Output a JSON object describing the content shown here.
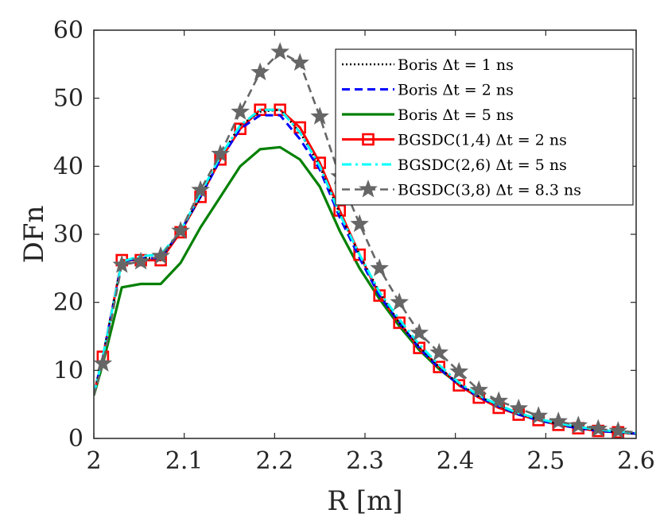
{
  "chart_data": {
    "type": "line",
    "xlabel": "R [m]",
    "ylabel": "DFn",
    "xlim": [
      2.0,
      2.6
    ],
    "ylim": [
      0,
      60
    ],
    "xticks": [
      2,
      2.1,
      2.2,
      2.3,
      2.4,
      2.5,
      2.6
    ],
    "yticks": [
      0,
      10,
      20,
      30,
      40,
      50,
      60
    ],
    "xtick_labels": [
      "2",
      "2.1",
      "2.2",
      "2.3",
      "2.4",
      "2.5",
      "2.6"
    ],
    "ytick_labels": [
      "0",
      "10",
      "20",
      "30",
      "40",
      "50",
      "60"
    ],
    "grid": false,
    "legend_position": "top-right",
    "series": [
      {
        "name": "Boris Δt = 1 ns",
        "color": "#000000",
        "line_style": "dotted",
        "marker": "none",
        "x": [
          2.0,
          2.01,
          2.031,
          2.052,
          2.074,
          2.096,
          2.118,
          2.14,
          2.162,
          2.184,
          2.206,
          2.228,
          2.25,
          2.272,
          2.294,
          2.316,
          2.338,
          2.36,
          2.382,
          2.404,
          2.426,
          2.448,
          2.47,
          2.492,
          2.514,
          2.536,
          2.558,
          2.58,
          2.6
        ],
        "y": [
          6.5,
          12,
          26,
          26.5,
          26.5,
          30.5,
          35.5,
          41.5,
          46,
          48,
          48.3,
          45,
          40,
          33,
          27,
          21.5,
          17,
          13.5,
          10.5,
          8,
          6.2,
          4.8,
          3.6,
          2.8,
          2.1,
          1.6,
          1.2,
          0.9,
          0.7
        ]
      },
      {
        "name": "Boris Δt = 2 ns",
        "color": "#0000ff",
        "line_style": "dashed",
        "marker": "none",
        "x": [
          2.0,
          2.01,
          2.031,
          2.052,
          2.074,
          2.096,
          2.118,
          2.14,
          2.162,
          2.184,
          2.206,
          2.228,
          2.25,
          2.272,
          2.294,
          2.316,
          2.338,
          2.36,
          2.382,
          2.404,
          2.426,
          2.448,
          2.47,
          2.492,
          2.514,
          2.536,
          2.558,
          2.58,
          2.6
        ],
        "y": [
          6.5,
          12,
          26,
          26.5,
          26.5,
          30.5,
          35.5,
          41,
          45.5,
          47.5,
          47.5,
          44,
          39.5,
          32.5,
          26.5,
          21,
          17,
          13.3,
          10.3,
          7.9,
          6.1,
          4.7,
          3.5,
          2.7,
          2.0,
          1.5,
          1.1,
          0.9,
          0.7
        ]
      },
      {
        "name": "Boris Δt = 5 ns",
        "color": "#008000",
        "line_style": "solid",
        "marker": "none",
        "x": [
          2.0,
          2.01,
          2.031,
          2.052,
          2.074,
          2.096,
          2.118,
          2.14,
          2.162,
          2.184,
          2.206,
          2.228,
          2.25,
          2.272,
          2.294,
          2.316,
          2.338,
          2.36,
          2.382,
          2.404,
          2.426,
          2.448,
          2.47,
          2.492,
          2.514,
          2.536,
          2.558,
          2.58,
          2.6
        ],
        "y": [
          6.3,
          11,
          22.2,
          22.7,
          22.7,
          25.8,
          31,
          35.5,
          40,
          42.5,
          42.8,
          41,
          37,
          30.5,
          25,
          20.5,
          16.5,
          13,
          10.2,
          7.9,
          6.1,
          4.7,
          3.6,
          2.8,
          2.1,
          1.6,
          1.2,
          0.9,
          0.7
        ]
      },
      {
        "name": "BGSDC(1,4) Δt = 2 ns",
        "color": "#ff0000",
        "line_style": "solid",
        "marker": "square",
        "x": [
          2.0,
          2.01,
          2.031,
          2.052,
          2.074,
          2.096,
          2.118,
          2.14,
          2.162,
          2.184,
          2.206,
          2.228,
          2.25,
          2.272,
          2.294,
          2.316,
          2.338,
          2.36,
          2.382,
          2.404,
          2.426,
          2.448,
          2.47,
          2.492,
          2.514,
          2.536,
          2.558,
          2.58,
          2.6
        ],
        "y": [
          6.5,
          12,
          26.2,
          26.2,
          26.2,
          30.3,
          35.5,
          41,
          45.5,
          48.3,
          48.3,
          45.7,
          40.5,
          33.5,
          27,
          21,
          17,
          13.3,
          10.5,
          7.8,
          6,
          4.5,
          3.5,
          2.7,
          2.0,
          1.5,
          1.1,
          0.9,
          0.7
        ]
      },
      {
        "name": "BGSDC(2,6) Δt = 5 ns",
        "color": "#00ffff",
        "line_style": "dashdot",
        "marker": "none",
        "x": [
          2.0,
          2.01,
          2.031,
          2.052,
          2.074,
          2.096,
          2.118,
          2.14,
          2.162,
          2.184,
          2.206,
          2.228,
          2.25,
          2.272,
          2.294,
          2.316,
          2.338,
          2.36,
          2.382,
          2.404,
          2.426,
          2.448,
          2.47,
          2.492,
          2.514,
          2.536,
          2.558,
          2.58,
          2.6
        ],
        "y": [
          6.5,
          12,
          26,
          26.8,
          27,
          30.5,
          36,
          41.5,
          46,
          48.3,
          48.3,
          45,
          40,
          33,
          27,
          21.5,
          17.5,
          13.8,
          10.8,
          8.2,
          6.3,
          4.9,
          3.7,
          2.9,
          2.2,
          1.7,
          1.3,
          1.0,
          0.8
        ]
      },
      {
        "name": "BGSDC(3,8) Δt = 8.3 ns",
        "color": "#666666",
        "line_style": "dashed",
        "marker": "star",
        "x": [
          2.0,
          2.01,
          2.031,
          2.052,
          2.074,
          2.096,
          2.118,
          2.14,
          2.162,
          2.184,
          2.206,
          2.228,
          2.25,
          2.272,
          2.294,
          2.316,
          2.338,
          2.36,
          2.382,
          2.404,
          2.426,
          2.448,
          2.47,
          2.492,
          2.514,
          2.536,
          2.558,
          2.58,
          2.6
        ],
        "y": [
          6.3,
          11,
          25.5,
          26,
          26.8,
          30.5,
          36.5,
          41.8,
          48,
          53.8,
          56.8,
          55.2,
          47.3,
          38.5,
          31.5,
          25,
          20,
          15.5,
          12.6,
          9.8,
          7.1,
          5.5,
          4.4,
          3.3,
          2.5,
          1.9,
          1.4,
          1.1,
          0.9
        ]
      }
    ]
  }
}
